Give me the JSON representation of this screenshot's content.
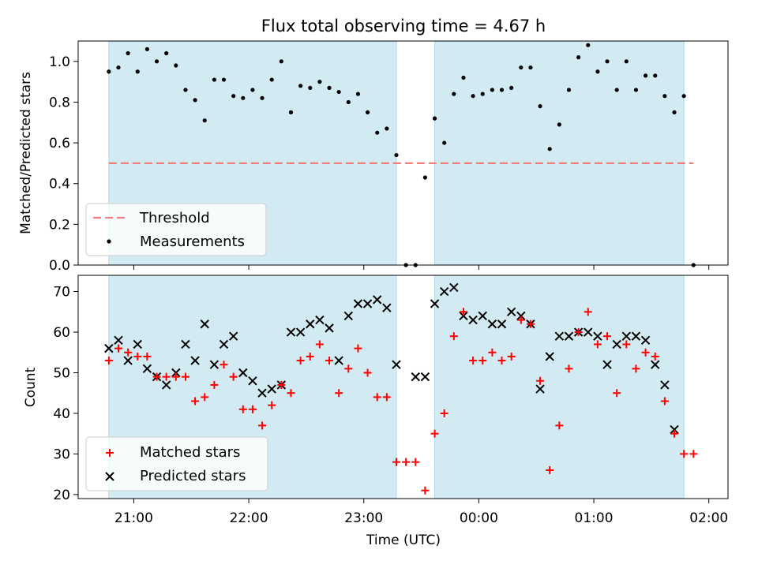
{
  "chart_data": {
    "title": "Flux total observing time = 4.67 h",
    "shaded_color": "#add8e6",
    "x_ticks": [
      "21:00",
      "22:00",
      "23:00",
      "00:00",
      "01:00",
      "02:00"
    ],
    "x_axis_label": "Time (UTC)",
    "windows": [
      [
        "20:47",
        "23:17"
      ],
      [
        "23:37",
        "01:47"
      ]
    ],
    "top": {
      "type": "scatter",
      "y_axis_label": "Matched/Predicted stars",
      "ylim": [
        0,
        1.1
      ],
      "y_ticks": [
        "0.0",
        "0.2",
        "0.4",
        "0.6",
        "0.8",
        "1.0"
      ],
      "threshold": {
        "value": 0.5,
        "x_range": [
          "20:47",
          "01:52"
        ],
        "color": "#f08080"
      },
      "legend": {
        "placement": "lower left",
        "entries": [
          "Threshold",
          "Measurements"
        ]
      },
      "series": [
        {
          "name": "Measurements",
          "color": "#000000",
          "x": [
            "20:47",
            "20:52",
            "20:57",
            "21:02",
            "21:07",
            "21:12",
            "21:17",
            "21:22",
            "21:27",
            "21:32",
            "21:37",
            "21:42",
            "21:47",
            "21:52",
            "21:57",
            "22:02",
            "22:07",
            "22:12",
            "22:17",
            "22:22",
            "22:27",
            "22:32",
            "22:37",
            "22:42",
            "22:47",
            "22:52",
            "22:57",
            "23:02",
            "23:07",
            "23:12",
            "23:17",
            "23:22",
            "23:27",
            "23:32",
            "23:37",
            "23:42",
            "23:47",
            "23:52",
            "23:57",
            "00:02",
            "00:07",
            "00:12",
            "00:17",
            "00:22",
            "00:27",
            "00:32",
            "00:37",
            "00:42",
            "00:47",
            "00:52",
            "00:57",
            "01:02",
            "01:07",
            "01:12",
            "01:17",
            "01:22",
            "01:27",
            "01:32",
            "01:37",
            "01:42",
            "01:47",
            "01:52"
          ],
          "y": [
            0.95,
            0.97,
            1.04,
            0.95,
            1.06,
            1.0,
            1.04,
            0.98,
            0.86,
            0.81,
            0.71,
            0.91,
            0.91,
            0.83,
            0.82,
            0.86,
            0.82,
            0.91,
            1.0,
            0.75,
            0.88,
            0.87,
            0.9,
            0.87,
            0.85,
            0.8,
            0.84,
            0.75,
            0.65,
            0.67,
            0.54,
            0.0,
            0.0,
            0.43,
            0.72,
            0.6,
            0.84,
            0.92,
            0.83,
            0.84,
            0.86,
            0.86,
            0.87,
            0.97,
            0.97,
            0.78,
            0.57,
            0.69,
            0.86,
            1.02,
            1.08,
            0.95,
            1.0,
            0.86,
            1.0,
            0.86,
            0.93,
            0.93,
            0.83,
            0.75,
            0.83,
            0.0
          ]
        }
      ]
    },
    "bottom": {
      "type": "scatter",
      "y_axis_label": "Count",
      "ylim": [
        19,
        74
      ],
      "y_ticks": [
        "20",
        "30",
        "40",
        "50",
        "60",
        "70"
      ],
      "legend": {
        "placement": "lower left",
        "entries": [
          "Matched stars",
          "Predicted stars"
        ]
      },
      "series": [
        {
          "name": "Matched stars",
          "marker": "plus",
          "color": "#ff0000",
          "x": [
            "20:47",
            "20:52",
            "20:57",
            "21:02",
            "21:07",
            "21:12",
            "21:17",
            "21:22",
            "21:27",
            "21:32",
            "21:37",
            "21:42",
            "21:47",
            "21:52",
            "21:57",
            "22:02",
            "22:07",
            "22:12",
            "22:17",
            "22:22",
            "22:27",
            "22:32",
            "22:37",
            "22:42",
            "22:47",
            "22:52",
            "22:57",
            "23:02",
            "23:07",
            "23:12",
            "23:17",
            "23:22",
            "23:27",
            "23:32",
            "23:37",
            "23:42",
            "23:47",
            "23:52",
            "23:57",
            "00:02",
            "00:07",
            "00:12",
            "00:17",
            "00:22",
            "00:27",
            "00:32",
            "00:37",
            "00:42",
            "00:47",
            "00:52",
            "00:57",
            "01:02",
            "01:07",
            "01:12",
            "01:17",
            "01:22",
            "01:27",
            "01:32",
            "01:37",
            "01:42",
            "01:47",
            "01:52"
          ],
          "y": [
            53,
            56,
            55,
            54,
            54,
            49,
            49,
            49,
            49,
            43,
            44,
            47,
            52,
            49,
            41,
            41,
            37,
            42,
            47,
            45,
            53,
            54,
            57,
            53,
            45,
            51,
            56,
            50,
            44,
            44,
            28,
            28,
            28,
            21,
            35,
            40,
            59,
            65,
            53,
            53,
            55,
            53,
            54,
            63,
            62,
            48,
            26,
            37,
            51,
            60,
            65,
            57,
            59,
            45,
            57,
            51,
            55,
            54,
            43,
            35,
            30,
            30
          ]
        },
        {
          "name": "Predicted stars",
          "marker": "x",
          "color": "#000000",
          "x": [
            "20:47",
            "20:52",
            "20:57",
            "21:02",
            "21:07",
            "21:12",
            "21:17",
            "21:22",
            "21:27",
            "21:32",
            "21:37",
            "21:42",
            "21:47",
            "21:52",
            "21:57",
            "22:02",
            "22:07",
            "22:12",
            "22:17",
            "22:22",
            "22:27",
            "22:32",
            "22:37",
            "22:42",
            "22:47",
            "22:52",
            "22:57",
            "23:02",
            "23:07",
            "23:12",
            "23:17",
            "23:27",
            "23:32",
            "23:37",
            "23:42",
            "23:47",
            "23:52",
            "23:57",
            "00:02",
            "00:07",
            "00:12",
            "00:17",
            "00:22",
            "00:27",
            "00:32",
            "00:37",
            "00:42",
            "00:47",
            "00:52",
            "00:57",
            "01:02",
            "01:07",
            "01:12",
            "01:17",
            "01:22",
            "01:27",
            "01:32",
            "01:37",
            "01:42",
            "01:47"
          ],
          "y": [
            56,
            58,
            53,
            57,
            51,
            49,
            47,
            50,
            57,
            53,
            62,
            52,
            57,
            59,
            50,
            48,
            45,
            46,
            47,
            60,
            60,
            62,
            63,
            61,
            53,
            64,
            67,
            67,
            68,
            66,
            52,
            49,
            49,
            67,
            70,
            71,
            64,
            63,
            64,
            62,
            62,
            65,
            64,
            62,
            46,
            54,
            59,
            59,
            60,
            60,
            59,
            52,
            57,
            59,
            59,
            58,
            52,
            47,
            36,
            null
          ]
        }
      ]
    }
  }
}
